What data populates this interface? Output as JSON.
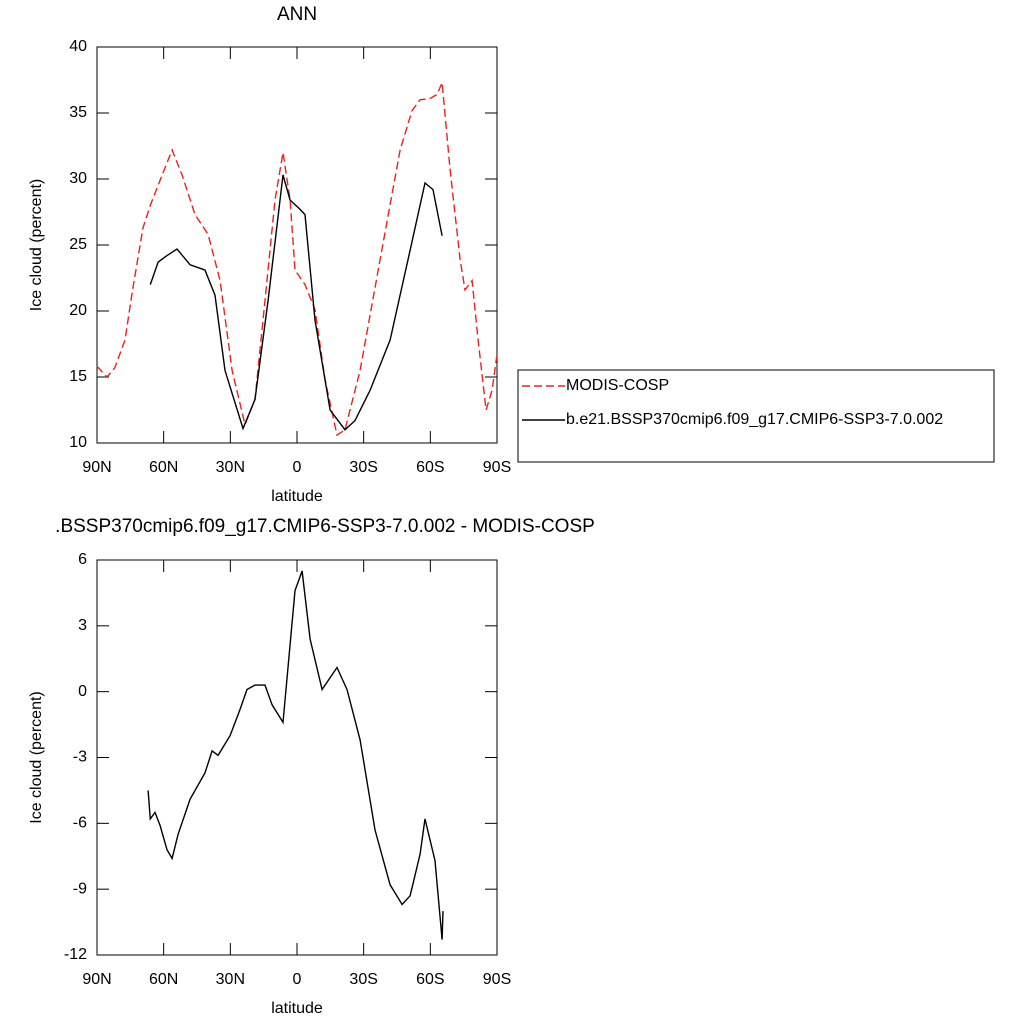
{
  "chart_data": [
    {
      "type": "line",
      "title": "ANN",
      "xlabel": "latitude",
      "ylabel": "Ice cloud (percent)",
      "xlim": [
        90,
        -90
      ],
      "xticks": [
        {
          "value": 90,
          "label": "90N"
        },
        {
          "value": 60,
          "label": "60N"
        },
        {
          "value": 30,
          "label": "30N"
        },
        0,
        {
          "value": -30,
          "label": "30S"
        },
        {
          "value": -60,
          "label": "60S"
        },
        {
          "value": -90,
          "label": "90S"
        }
      ],
      "ylim": [
        10,
        40
      ],
      "yticks": [
        10,
        15,
        20,
        25,
        30,
        35,
        40
      ],
      "legend": "right",
      "series": [
        {
          "name": "MODIS-COSP",
          "color": "#e8231f",
          "dash": true,
          "x": [
            90,
            85.5,
            82,
            77.4,
            74,
            69.3,
            66,
            61.6,
            56.2,
            51.7,
            45.9,
            40,
            34.6,
            29.2,
            23.4,
            18.9,
            14.4,
            9.9,
            6.3,
            3.1,
            0.9,
            -3.6,
            -8.1,
            -12.6,
            -18,
            -21.6,
            -28.4,
            -37.4,
            -46.4,
            -51.8,
            -55.4,
            -59.9,
            -63,
            -65.3,
            -68.9,
            -73.4,
            -75.6,
            -78.8,
            -81.5,
            -85.1,
            -87.8,
            -90
          ],
          "values": [
            15.8,
            15.0,
            15.7,
            17.8,
            21.6,
            26.3,
            28.0,
            29.9,
            32.2,
            30.3,
            27.3,
            25.8,
            22.3,
            15.5,
            11.4,
            13.3,
            20.8,
            28.4,
            32.0,
            28.4,
            23.1,
            22.0,
            20.1,
            14.8,
            10.6,
            11.0,
            15.5,
            23.9,
            32.2,
            35.2,
            36.0,
            36.1,
            36.4,
            37.3,
            30.7,
            23.9,
            21.6,
            22.3,
            17.8,
            12.5,
            14.0,
            16.7
          ]
        },
        {
          "name": "b.e21.BSSP370cmip6.f09_g17.CMIP6-SSP3-7.0.002",
          "color": "#000000",
          "dash": false,
          "x": [
            66,
            62.5,
            59.4,
            54,
            48.1,
            41.4,
            36.9,
            32.4,
            24.3,
            18.9,
            13,
            6.3,
            3.1,
            -1.4,
            -3.6,
            -8.1,
            -14.9,
            -21.6,
            -26.1,
            -32.9,
            -41.9,
            -50.9,
            -57.6,
            -61.2,
            -65.3
          ],
          "values": [
            22.0,
            23.7,
            24.1,
            24.7,
            23.5,
            23.1,
            21.2,
            15.5,
            11.1,
            13.3,
            20.8,
            30.3,
            28.4,
            27.7,
            27.3,
            19.3,
            12.5,
            11.0,
            11.7,
            14.0,
            17.8,
            24.6,
            29.7,
            29.2,
            25.7
          ]
        }
      ]
    },
    {
      "type": "line",
      "title": ".BSSP370cmip6.f09_g17.CMIP6-SSP3-7.0.002 - MODIS-COSP",
      "xlabel": "latitude",
      "ylabel": "Ice cloud (percent)",
      "xlim": [
        90,
        -90
      ],
      "xticks": [
        {
          "value": 90,
          "label": "90N"
        },
        {
          "value": 60,
          "label": "60N"
        },
        {
          "value": 30,
          "label": "30N"
        },
        0,
        {
          "value": -30,
          "label": "30S"
        },
        {
          "value": -60,
          "label": "60S"
        },
        {
          "value": -90,
          "label": "90S"
        }
      ],
      "ylim": [
        -12,
        6
      ],
      "yticks": [
        -12,
        -9,
        -6,
        -3,
        0,
        3,
        6
      ],
      "color": "#000000",
      "x": [
        67,
        66,
        63.9,
        61.6,
        58.5,
        56.2,
        53.5,
        48.1,
        41.4,
        38.2,
        35.5,
        30.1,
        25.6,
        22.5,
        18.9,
        14.4,
        11.2,
        6.3,
        0.9,
        -2.3,
        -5.9,
        -11.3,
        -18,
        -22.5,
        -28.4,
        -35.1,
        -41.9,
        -47.3,
        -50.9,
        -55.4,
        -57.6,
        -62.1,
        -65.3,
        -65.7
      ],
      "values": [
        -4.5,
        -5.8,
        -5.5,
        -6.1,
        -7.2,
        -7.6,
        -6.5,
        -4.9,
        -3.7,
        -2.7,
        -2.9,
        -2.0,
        -0.8,
        0.1,
        0.3,
        0.3,
        -0.6,
        -1.4,
        4.6,
        5.5,
        2.4,
        0.1,
        1.1,
        0.1,
        -2.2,
        -6.3,
        -8.8,
        -9.7,
        -9.3,
        -7.4,
        -5.8,
        -7.7,
        -11.3,
        -10.0
      ]
    }
  ]
}
